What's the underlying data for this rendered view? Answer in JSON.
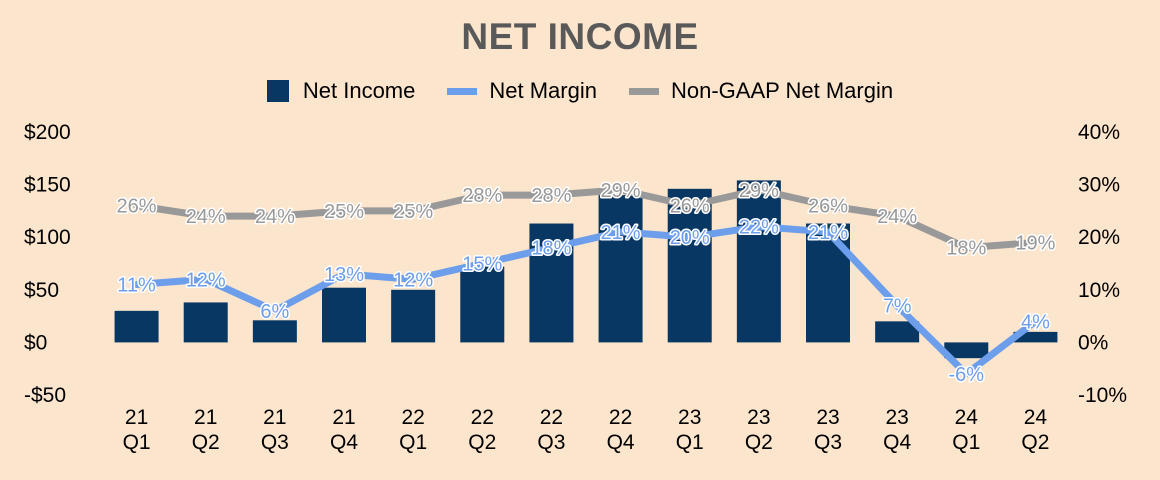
{
  "chart_data": {
    "type": "bar",
    "title": "NET INCOME",
    "categories": [
      [
        "21",
        "Q1"
      ],
      [
        "21",
        "Q2"
      ],
      [
        "21",
        "Q3"
      ],
      [
        "21",
        "Q4"
      ],
      [
        "22",
        "Q1"
      ],
      [
        "22",
        "Q2"
      ],
      [
        "22",
        "Q3"
      ],
      [
        "22",
        "Q4"
      ],
      [
        "23",
        "Q1"
      ],
      [
        "23",
        "Q2"
      ],
      [
        "23",
        "Q3"
      ],
      [
        "23",
        "Q4"
      ],
      [
        "24",
        "Q1"
      ],
      [
        "24",
        "Q2"
      ]
    ],
    "left_axis": {
      "ylim": [
        -50,
        200
      ],
      "ticks": [
        -50,
        0,
        50,
        100,
        150,
        200
      ],
      "tick_labels": [
        "-$50",
        "$0",
        "$50",
        "$100",
        "$150",
        "$200"
      ]
    },
    "right_axis": {
      "ylim": [
        -10,
        40
      ],
      "ticks": [
        -10,
        0,
        10,
        20,
        30,
        40
      ],
      "tick_labels": [
        "-10%",
        "0%",
        "10%",
        "20%",
        "30%",
        "40%"
      ]
    },
    "series": [
      {
        "name": "Net Income",
        "kind": "bar",
        "axis": "left",
        "color": "#083763",
        "values": [
          30,
          38,
          21,
          52,
          50,
          72,
          113,
          140,
          146,
          154,
          113,
          20,
          -15,
          10
        ]
      },
      {
        "name": "Net Margin",
        "kind": "line",
        "axis": "right",
        "color": "#6d9eeb",
        "values": [
          11,
          12,
          6,
          13,
          12,
          15,
          18,
          21,
          20,
          22,
          21,
          7,
          -6,
          4
        ],
        "labels": [
          "11%",
          "12%",
          "6%",
          "13%",
          "12%",
          "15%",
          "18%",
          "21%",
          "20%",
          "22%",
          "21%",
          "7%",
          "-6%",
          "4%"
        ]
      },
      {
        "name": "Non-GAAP Net Margin",
        "kind": "line",
        "axis": "right",
        "color": "#999999",
        "values": [
          26,
          24,
          24,
          25,
          25,
          28,
          28,
          29,
          26,
          29,
          26,
          24,
          18,
          19
        ],
        "labels": [
          "26%",
          "24%",
          "24%",
          "25%",
          "25%",
          "28%",
          "28%",
          "29%",
          "26%",
          "29%",
          "26%",
          "24%",
          "18%",
          "19%"
        ]
      }
    ],
    "legend": {
      "position": "top",
      "entries": [
        "Net Income",
        "Net Margin",
        "Non-GAAP Net Margin"
      ]
    },
    "grid": false
  }
}
